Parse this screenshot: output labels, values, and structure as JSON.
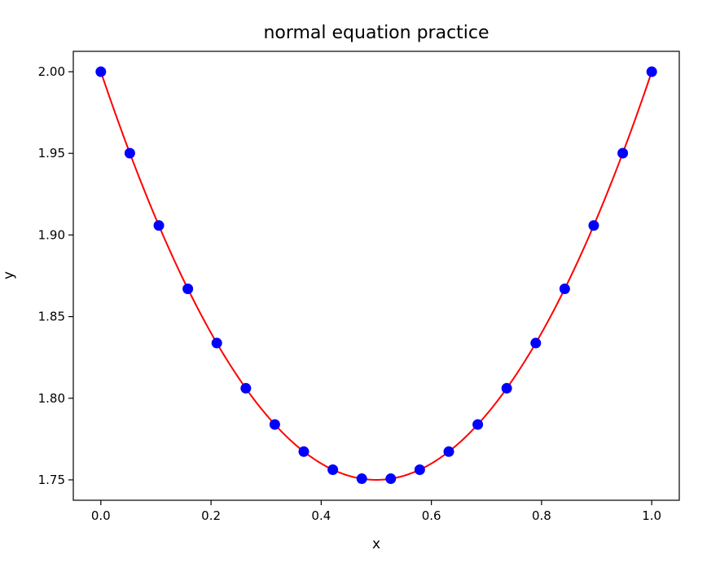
{
  "chart_data": {
    "type": "scatter",
    "title": "normal equation practice",
    "xlabel": "x",
    "ylabel": "y",
    "xlim": [
      -0.05,
      1.05
    ],
    "ylim": [
      1.7375,
      2.0125
    ],
    "xticks": [
      0.0,
      0.2,
      0.4,
      0.6,
      0.8,
      1.0
    ],
    "xtick_labels": [
      "0.0",
      "0.2",
      "0.4",
      "0.6",
      "0.8",
      "1.0"
    ],
    "yticks": [
      1.75,
      1.8,
      1.85,
      1.9,
      1.95,
      2.0
    ],
    "ytick_labels": [
      "1.75",
      "1.80",
      "1.85",
      "1.90",
      "1.95",
      "2.00"
    ],
    "grid": false,
    "colors": {
      "points": "#0000ff",
      "fit": "#ff0000"
    },
    "series": [
      {
        "kind": "scatter",
        "x": [
          0.0,
          0.0526,
          0.1053,
          0.1579,
          0.2105,
          0.2632,
          0.3158,
          0.3684,
          0.4211,
          0.4737,
          0.5263,
          0.5789,
          0.6316,
          0.6842,
          0.7368,
          0.7895,
          0.8421,
          0.8947,
          0.9474,
          1.0
        ],
        "y": [
          2.0,
          1.9501,
          1.9058,
          1.867,
          1.8338,
          1.8061,
          1.7839,
          1.7673,
          1.7562,
          1.7507,
          1.7507,
          1.7562,
          1.7673,
          1.7839,
          1.8061,
          1.8338,
          1.867,
          1.9058,
          1.9501,
          2.0
        ]
      },
      {
        "kind": "line",
        "equation": "y = (x - 0.5)^2 + 1.75",
        "coefficients": {
          "a": 1,
          "b": -1,
          "c": 2
        },
        "x_range": [
          0.0,
          1.0
        ]
      }
    ]
  }
}
